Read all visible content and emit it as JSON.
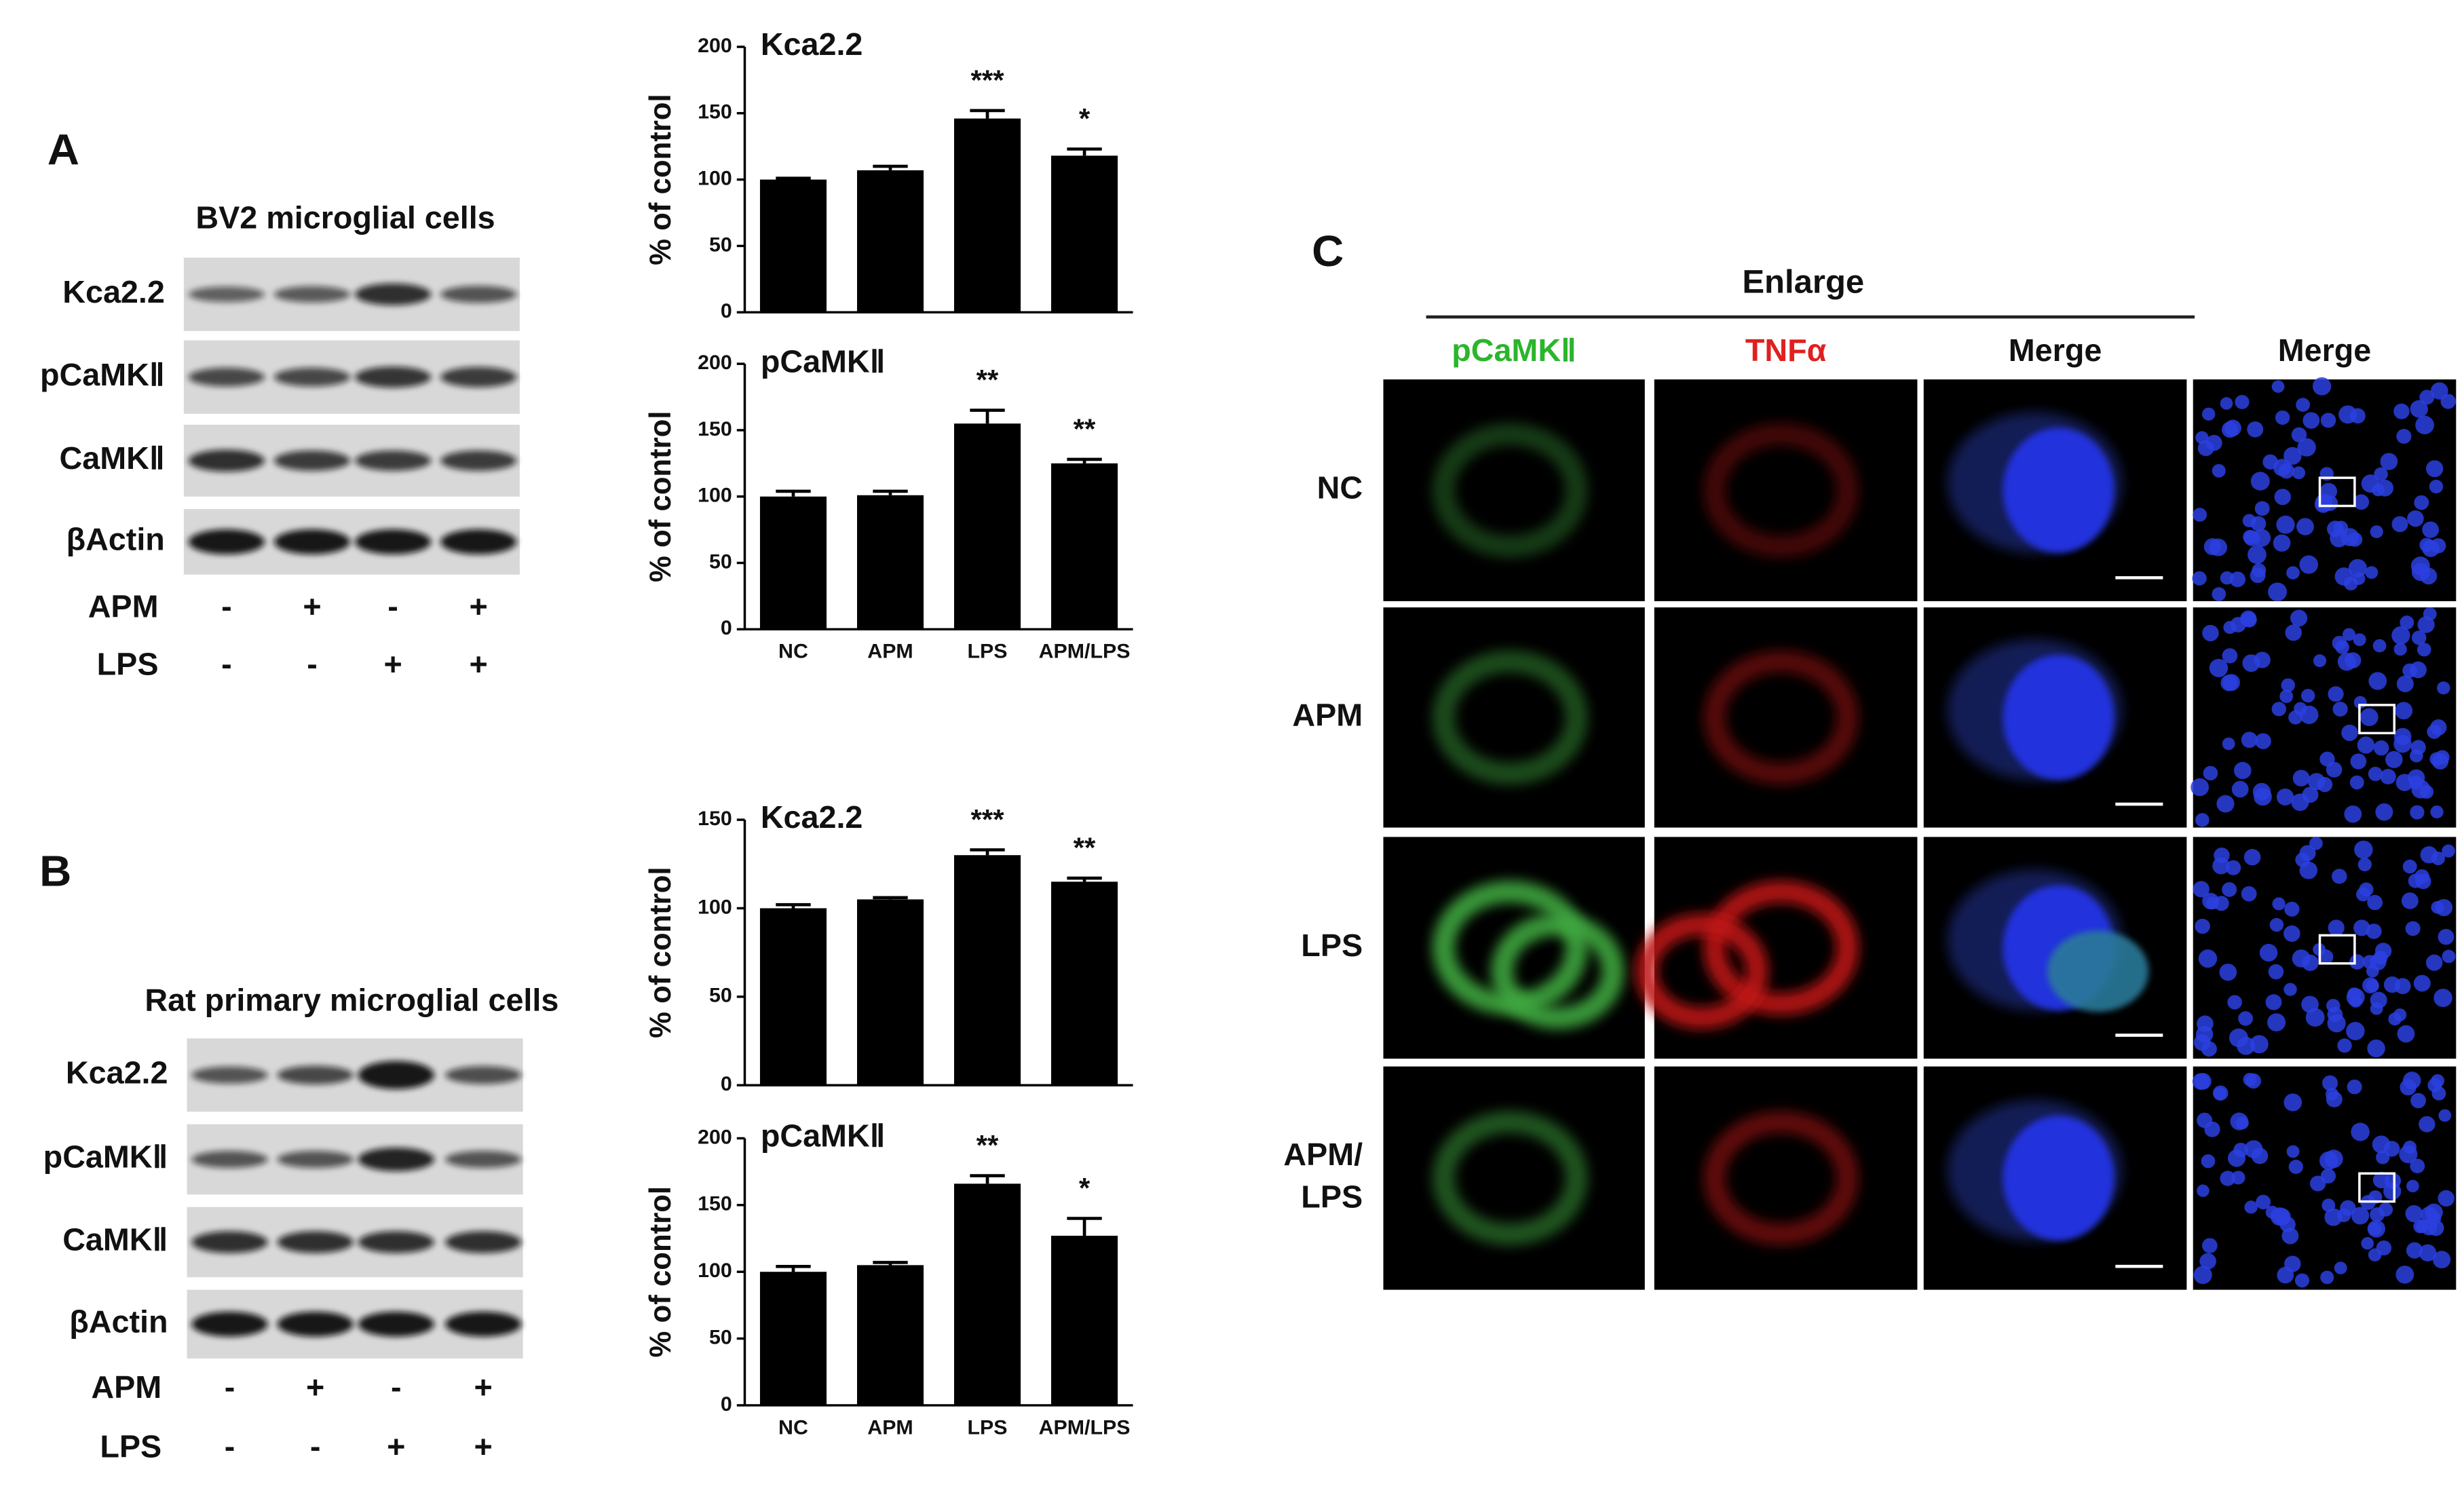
{
  "panels": {
    "a": "A",
    "b": "B",
    "c": "C"
  },
  "blot_a": {
    "title": "BV2 microglial cells",
    "rows": [
      "Kca2.2",
      "pCaMKⅡ",
      "CaMKⅡ",
      "βActin"
    ],
    "treatments": [
      {
        "name": "APM",
        "signs": [
          "-",
          "+",
          "-",
          "+"
        ]
      },
      {
        "name": "LPS",
        "signs": [
          "-",
          "-",
          "+",
          "+"
        ]
      }
    ]
  },
  "blot_b": {
    "title": "Rat primary microglial cells",
    "rows": [
      "Kca2.2",
      "pCaMKⅡ",
      "CaMKⅡ",
      "βActin"
    ],
    "treatments": [
      {
        "name": "APM",
        "signs": [
          "-",
          "+",
          "-",
          "+"
        ]
      },
      {
        "name": "LPS",
        "signs": [
          "-",
          "-",
          "+",
          "+"
        ]
      }
    ]
  },
  "imaging": {
    "group": "Enlarge",
    "columns": [
      "pCaMKⅡ",
      "TNFα",
      "Merge",
      "Merge"
    ],
    "rows": [
      [
        "NC"
      ],
      [
        "APM"
      ],
      [
        "LPS"
      ],
      [
        "APM/",
        "LPS"
      ]
    ]
  },
  "chart_data": [
    {
      "type": "bar",
      "title": "Kca2.2",
      "y_label": "% of control",
      "categories": [
        null,
        null,
        null,
        null
      ],
      "values": [
        100,
        107,
        146,
        118
      ],
      "errors": [
        1,
        3,
        6,
        5
      ],
      "annotations": [
        null,
        null,
        "***",
        "*"
      ],
      "color": "#000000",
      "ylim": [
        0,
        200
      ],
      "yticks": [
        0,
        50,
        100,
        150,
        200
      ]
    },
    {
      "type": "bar",
      "title": "pCaMKⅡ",
      "y_label": "% of control",
      "categories": [
        "NC",
        "APM",
        "LPS",
        "APM/LPS"
      ],
      "values": [
        100,
        101,
        155,
        125
      ],
      "errors": [
        4,
        3,
        10,
        3
      ],
      "annotations": [
        null,
        null,
        "**",
        "**"
      ],
      "color": "#000000",
      "ylim": [
        0,
        200
      ],
      "yticks": [
        0,
        50,
        100,
        150,
        200
      ]
    },
    {
      "type": "bar",
      "title": "Kca2.2",
      "y_label": "% of control",
      "categories": [
        null,
        null,
        null,
        null
      ],
      "values": [
        100,
        105,
        130,
        115
      ],
      "errors": [
        2,
        1,
        3,
        2
      ],
      "annotations": [
        null,
        null,
        "***",
        "**"
      ],
      "color": "#000000",
      "ylim": [
        0,
        150
      ],
      "yticks": [
        0,
        50,
        100,
        150
      ]
    },
    {
      "type": "bar",
      "title": "pCaMKⅡ",
      "y_label": "% of control",
      "categories": [
        "NC",
        "APM",
        "LPS",
        "APM/LPS"
      ],
      "values": [
        100,
        105,
        166,
        127
      ],
      "errors": [
        4,
        2,
        6,
        13
      ],
      "annotations": [
        null,
        null,
        "**",
        "*"
      ],
      "color": "#000000",
      "ylim": [
        0,
        200
      ],
      "yticks": [
        0,
        50,
        100,
        150,
        200
      ]
    }
  ]
}
